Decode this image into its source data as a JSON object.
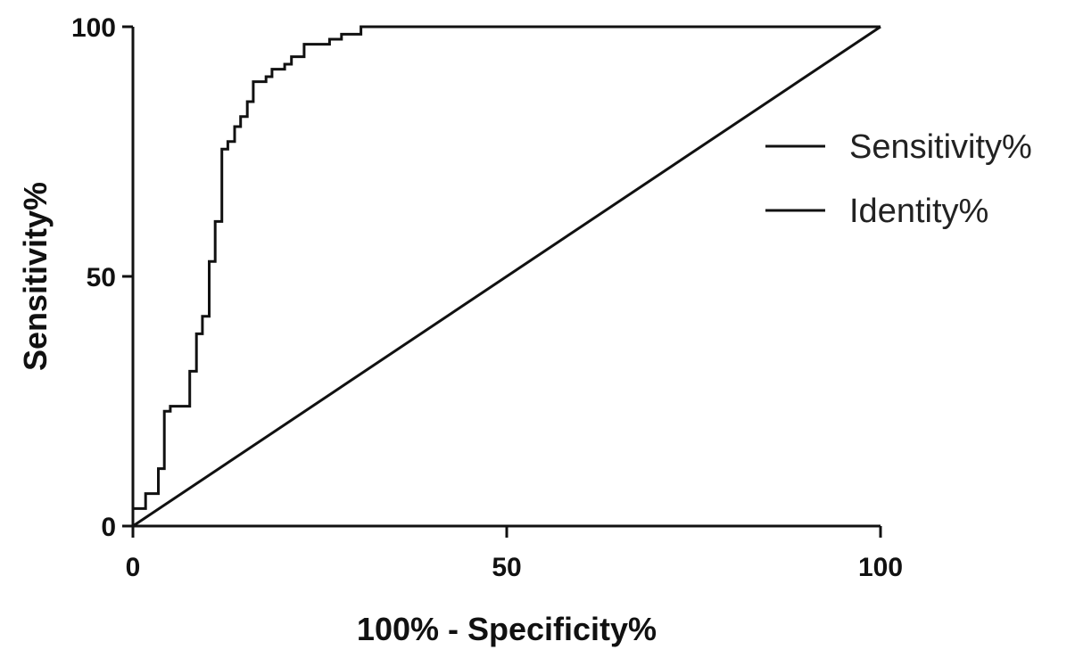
{
  "chart_data": {
    "type": "line",
    "title": "",
    "xlabel": "100% - Specificity%",
    "ylabel": "Sensitivity%",
    "xlim": [
      0,
      100
    ],
    "ylim": [
      0,
      100
    ],
    "x_ticks": [
      "0",
      "50",
      "100"
    ],
    "y_ticks": [
      "0",
      "50",
      "100"
    ],
    "grid": false,
    "legend_position": "right",
    "legend": [
      "Sensitivity%",
      "Identity%"
    ],
    "series": [
      {
        "name": "Sensitivity%",
        "step": true,
        "color": "#111111",
        "points": [
          [
            0,
            0
          ],
          [
            0,
            3.5
          ],
          [
            1.7,
            3.5
          ],
          [
            1.7,
            6.5
          ],
          [
            3.4,
            6.5
          ],
          [
            3.4,
            11.5
          ],
          [
            4.2,
            11.5
          ],
          [
            4.2,
            23
          ],
          [
            5.0,
            23
          ],
          [
            5.0,
            24
          ],
          [
            7.6,
            24
          ],
          [
            7.6,
            31
          ],
          [
            8.5,
            31
          ],
          [
            8.5,
            38.5
          ],
          [
            9.3,
            38.5
          ],
          [
            9.3,
            42
          ],
          [
            10.2,
            42
          ],
          [
            10.2,
            53
          ],
          [
            11.0,
            53
          ],
          [
            11.0,
            61
          ],
          [
            11.9,
            61
          ],
          [
            11.9,
            75.5
          ],
          [
            12.7,
            75.5
          ],
          [
            12.7,
            77
          ],
          [
            13.6,
            77
          ],
          [
            13.6,
            80
          ],
          [
            14.4,
            80
          ],
          [
            14.4,
            82
          ],
          [
            15.3,
            82
          ],
          [
            15.3,
            85
          ],
          [
            16.1,
            85
          ],
          [
            16.1,
            89
          ],
          [
            17.8,
            89
          ],
          [
            17.8,
            90
          ],
          [
            18.6,
            90
          ],
          [
            18.6,
            91.5
          ],
          [
            20.3,
            91.5
          ],
          [
            20.3,
            92.5
          ],
          [
            21.2,
            92.5
          ],
          [
            21.2,
            94
          ],
          [
            22.9,
            94
          ],
          [
            22.9,
            96.5
          ],
          [
            26.3,
            96.5
          ],
          [
            26.3,
            97.5
          ],
          [
            27.9,
            97.5
          ],
          [
            27.9,
            98.5
          ],
          [
            30.5,
            98.5
          ],
          [
            30.5,
            100
          ],
          [
            100,
            100
          ]
        ]
      },
      {
        "name": "Identity%",
        "step": false,
        "color": "#111111",
        "points": [
          [
            0,
            0
          ],
          [
            100,
            100
          ]
        ]
      }
    ]
  }
}
